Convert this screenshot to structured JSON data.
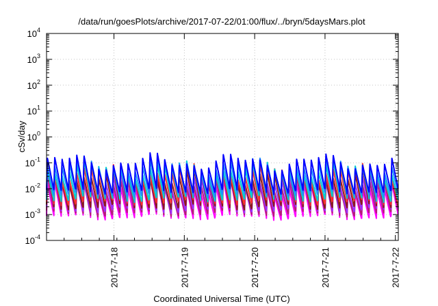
{
  "chart_data": {
    "type": "line",
    "title": "/data/run/goesPlots/archive/2017-07-22/01:00/flux/../bryn/5daysMars.plot",
    "xlabel": "Coordinated Universal Time (UTC)",
    "ylabel": "cSv/day",
    "yscale": "log",
    "ylim": [
      0.0001,
      10000
    ],
    "y_ticks": [
      {
        "value": 0.0001,
        "base": "10",
        "exp": "-4"
      },
      {
        "value": 0.001,
        "base": "10",
        "exp": "-3"
      },
      {
        "value": 0.01,
        "base": "10",
        "exp": "-2"
      },
      {
        "value": 0.1,
        "base": "10",
        "exp": "-1"
      },
      {
        "value": 1,
        "base": "10",
        "exp": "0"
      },
      {
        "value": 10,
        "base": "10",
        "exp": "1"
      },
      {
        "value": 100,
        "base": "10",
        "exp": "2"
      },
      {
        "value": 1000,
        "base": "10",
        "exp": "3"
      },
      {
        "value": 10000,
        "base": "10",
        "exp": "4"
      }
    ],
    "xlim": [
      "2017-07-17 01:00",
      "2017-07-22 01:00"
    ],
    "x_ticks": [
      "2017-7-18",
      "2017-7-19",
      "2017-7-20",
      "2017-7-21",
      "2017-7-22"
    ],
    "grid": true,
    "sawtooth_period_hours": 2.5,
    "series": [
      {
        "color": "#ff00ff",
        "min": 0.0008,
        "max": 0.012
      },
      {
        "color": "#b41e78",
        "min": 0.0011,
        "max": 0.015
      },
      {
        "color": "#9b30ff",
        "min": 0.0015,
        "max": 0.02
      },
      {
        "color": "#8b1a1a",
        "min": 0.002,
        "max": 0.03
      },
      {
        "color": "#ff3030",
        "min": 0.003,
        "max": 0.045
      },
      {
        "color": "#00ced1",
        "min": 0.004,
        "max": 0.06
      },
      {
        "color": "#1e90ff",
        "min": 0.006,
        "max": 0.08
      },
      {
        "color": "#0000ff",
        "min": 0.008,
        "max": 0.11
      }
    ]
  }
}
